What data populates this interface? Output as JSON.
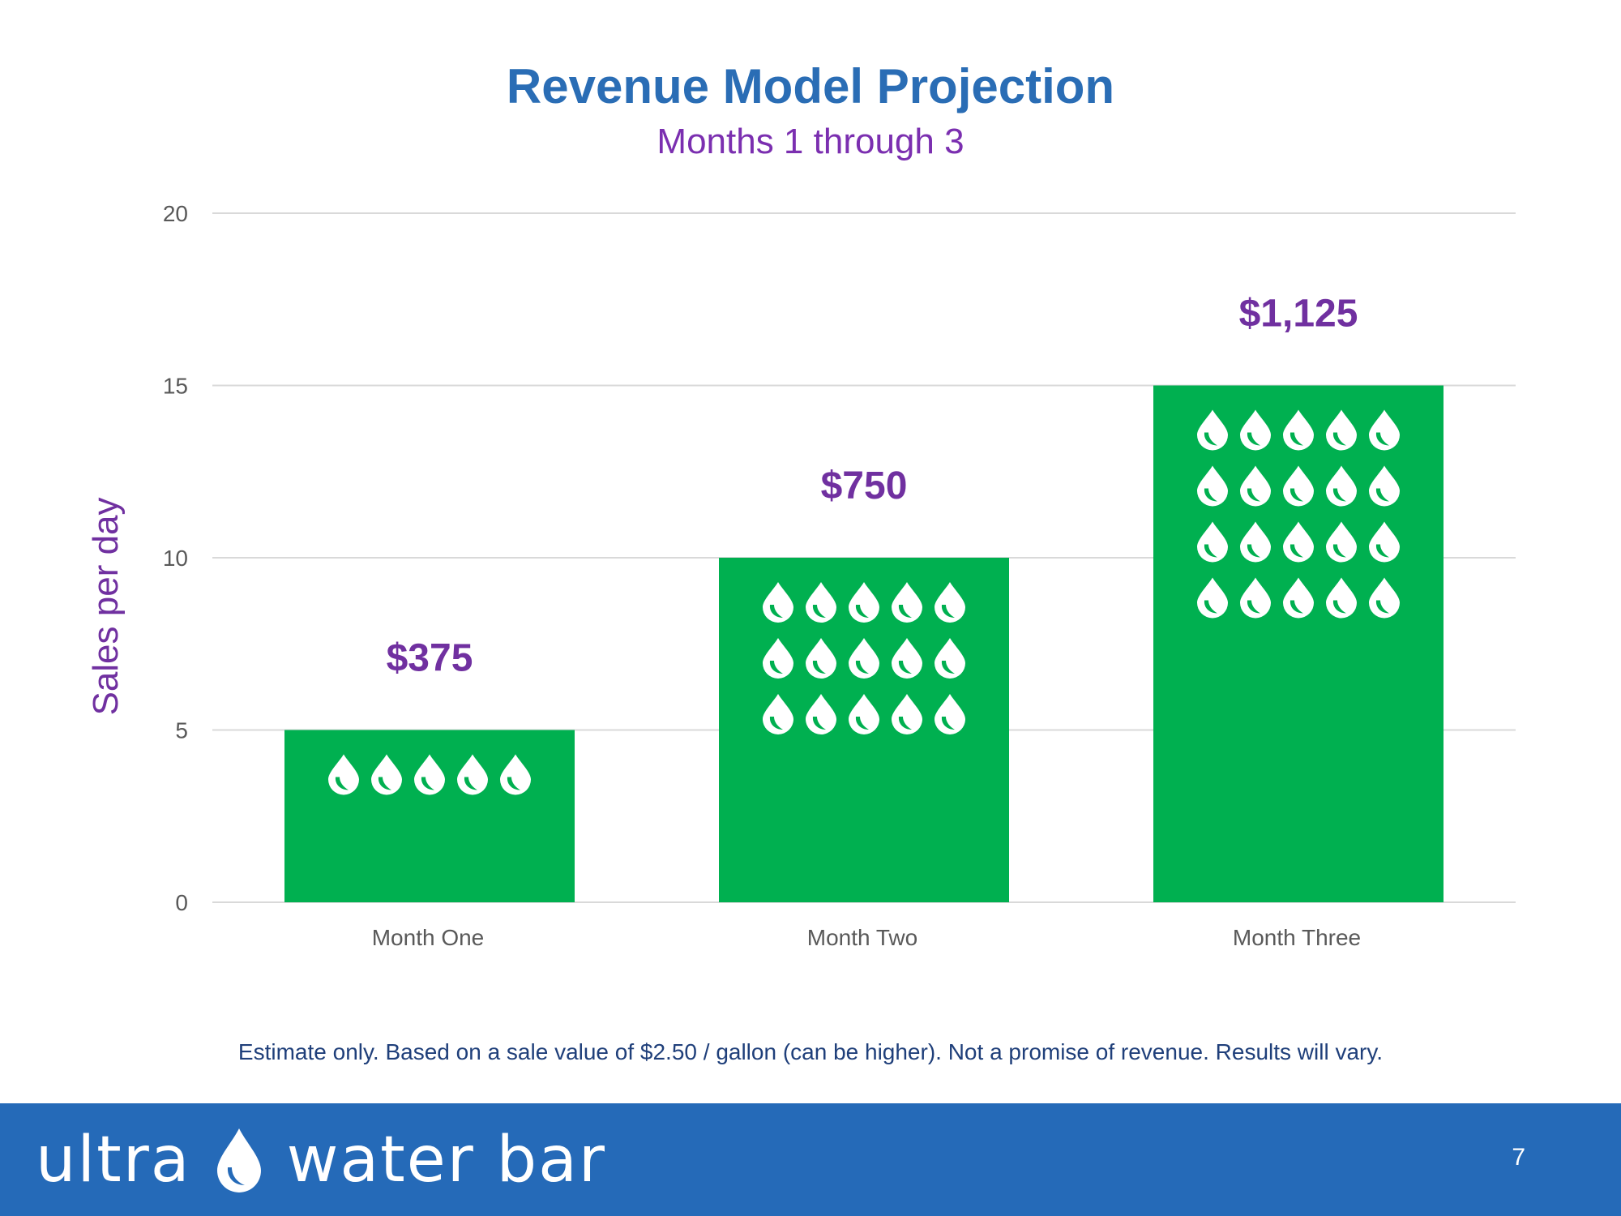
{
  "slide": {
    "title": "Revenue Model Projection",
    "subtitle": "Months 1 through 3",
    "footnote": "Estimate only. Based on a sale value of $2.50 / gallon (can be higher). Not a promise of revenue. Results will vary.",
    "page_number": "7"
  },
  "footer": {
    "brand_left": "ultra",
    "brand_icon": "water-drop-icon",
    "brand_right": "water bar",
    "background_color": "#256ab8"
  },
  "chart_data": {
    "type": "bar",
    "categories": [
      "Month One",
      "Month Two",
      "Month Three"
    ],
    "values": [
      5,
      10,
      15
    ],
    "data_labels": [
      "$375",
      "$750",
      "$1,125"
    ],
    "ylabel": "Sales per day",
    "xlabel": "",
    "ylim": [
      0,
      20
    ],
    "yticks": [
      0,
      5,
      10,
      15,
      20
    ],
    "grid": true,
    "bar_color": "#00b050",
    "label_color": "#7030a0",
    "icon": "water-drop-icon",
    "icons_per_bar": [
      5,
      15,
      20
    ]
  }
}
